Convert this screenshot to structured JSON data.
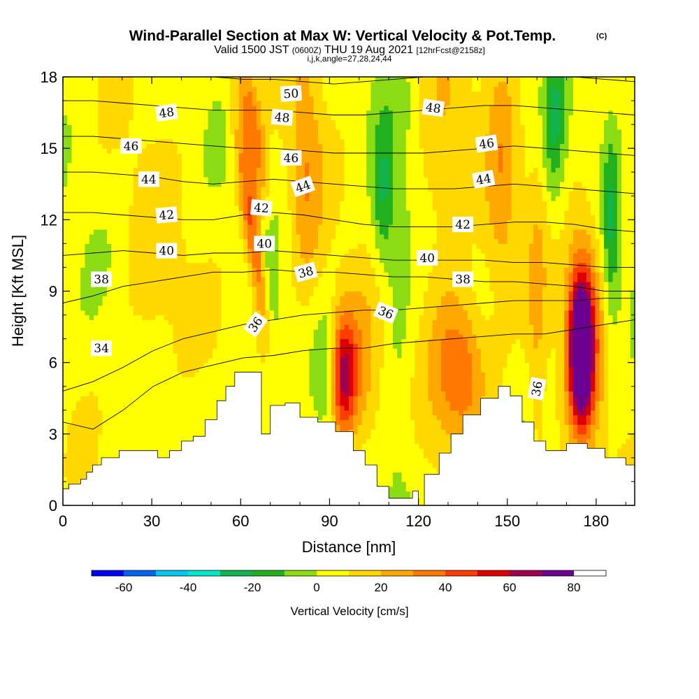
{
  "chart_data": {
    "type": "heatmap",
    "title": "Wind-Parallel Section at Max W: Vertical Velocity & Pot.Temp.",
    "copyright_mark": "(C)",
    "subtitle": {
      "valid": "Valid 1500 JST",
      "utc": "(0600Z)",
      "date": "THU 19 Aug 2021",
      "forecast": "[12hrFcst@2158z]"
    },
    "subtitle2": "i,j,k,angle=27,28,24,44",
    "xlabel": "Distance [nm]",
    "ylabel": "Height [Kft MSL]",
    "xlim": [
      0,
      193
    ],
    "ylim": [
      0,
      18
    ],
    "x_ticks": [
      0,
      30,
      60,
      90,
      120,
      150,
      180
    ],
    "y_ticks": [
      0,
      3,
      6,
      9,
      12,
      15,
      18
    ],
    "colorbar": {
      "label": "Vertical Velocity [cm/s]",
      "levels": [
        -70,
        -60,
        -50,
        -40,
        -30,
        -20,
        -10,
        0,
        10,
        20,
        30,
        40,
        50,
        60,
        70,
        80,
        90
      ],
      "colors": [
        "#0000f0",
        "#0064f0",
        "#00c8f0",
        "#00e8c8",
        "#10b450",
        "#20b020",
        "#8cdc14",
        "#ffff00",
        "#ffd800",
        "#ffa800",
        "#ff7800",
        "#ff3c00",
        "#dc0000",
        "#a00050",
        "#6c0090"
      ],
      "tick_values": [
        -60,
        -40,
        -20,
        0,
        20,
        40,
        60,
        80
      ],
      "tick_labels": [
        "-60",
        "-40",
        "-20",
        "0",
        "20",
        "40",
        "60",
        "80"
      ]
    },
    "terrain": [
      [
        0,
        0.7
      ],
      [
        2,
        0.9
      ],
      [
        6,
        1.1
      ],
      [
        8,
        1.4
      ],
      [
        10,
        1.7
      ],
      [
        13,
        2.0
      ],
      [
        19,
        2.3
      ],
      [
        32,
        2.0
      ],
      [
        36,
        2.3
      ],
      [
        40,
        2.7
      ],
      [
        44,
        2.9
      ],
      [
        48,
        3.6
      ],
      [
        52,
        4.4
      ],
      [
        55,
        5.0
      ],
      [
        58,
        5.6
      ],
      [
        64,
        5.6
      ],
      [
        67,
        3.0
      ],
      [
        70,
        4.2
      ],
      [
        75,
        4.3
      ],
      [
        80,
        3.7
      ],
      [
        86,
        3.5
      ],
      [
        92,
        3.1
      ],
      [
        98,
        2.3
      ],
      [
        102,
        1.7
      ],
      [
        106,
        0.8
      ],
      [
        110,
        0.3
      ],
      [
        114,
        0.3
      ],
      [
        118,
        0.6
      ],
      [
        120,
        0.0
      ],
      [
        122,
        1.3
      ],
      [
        127,
        2.2
      ],
      [
        131,
        3.0
      ],
      [
        135,
        3.8
      ],
      [
        141,
        4.5
      ],
      [
        147,
        5.0
      ],
      [
        151,
        4.6
      ],
      [
        155,
        3.5
      ],
      [
        159,
        2.7
      ],
      [
        163,
        2.3
      ],
      [
        170,
        2.6
      ],
      [
        177,
        2.4
      ],
      [
        183,
        2.0
      ],
      [
        190,
        1.7
      ],
      [
        193,
        1.7
      ]
    ],
    "w_features": [
      {
        "x": 64,
        "z": 11.5,
        "sx": 2.2,
        "sz": 3.5,
        "amp": 40,
        "tilt": -0.18
      },
      {
        "x": 64,
        "z": 16,
        "sx": 2.5,
        "sz": 2.5,
        "amp": 30,
        "tilt": -0.2
      },
      {
        "x": 94,
        "z": 5.5,
        "sx": 3.2,
        "sz": 1.8,
        "amp": 52
      },
      {
        "x": 98,
        "z": 5.2,
        "sx": 7,
        "sz": 2.6,
        "amp": 22
      },
      {
        "x": 135,
        "z": 5.6,
        "sx": 6,
        "sz": 2.0,
        "amp": 35
      },
      {
        "x": 175,
        "z": 6.6,
        "sx": 2.6,
        "sz": 2.0,
        "amp": 88
      },
      {
        "x": 176,
        "z": 7.5,
        "sx": 4.8,
        "sz": 3.8,
        "amp": 30
      },
      {
        "x": 160,
        "z": 7,
        "sx": 2.5,
        "sz": 6,
        "amp": 14
      },
      {
        "x": 82,
        "z": 14,
        "sx": 4,
        "sz": 4,
        "amp": 22
      },
      {
        "x": 128,
        "z": 13,
        "sx": 6,
        "sz": 6,
        "amp": 14
      },
      {
        "x": 148,
        "z": 14,
        "sx": 4,
        "sz": 5,
        "amp": 18
      },
      {
        "x": 30,
        "z": 9,
        "sx": 8,
        "sz": 4,
        "amp": 9
      },
      {
        "x": 90,
        "z": 5.5,
        "sx": 3,
        "sz": 1.8,
        "amp": -32
      },
      {
        "x": 108,
        "z": 13,
        "sx": 2.5,
        "sz": 2.2,
        "amp": -22
      },
      {
        "x": 166,
        "z": 16,
        "sx": 2.5,
        "sz": 2.5,
        "amp": -22
      },
      {
        "x": 185,
        "z": 11.5,
        "sx": 2,
        "sz": 3,
        "amp": -24
      },
      {
        "x": 113,
        "z": 7,
        "sx": 4,
        "sz": 8,
        "amp": -10
      },
      {
        "x": 70,
        "z": 8,
        "sx": 2,
        "sz": 3,
        "amp": -14
      }
    ],
    "theta_contours": [
      {
        "level": 34,
        "z": [
          3.5,
          3.2,
          4.0,
          5.0,
          5.6,
          5.9,
          6.2,
          6.3,
          6.5,
          6.6,
          6.6,
          6.8,
          6.9,
          7.0,
          7.1,
          7.2,
          7.2,
          7.4,
          7.6,
          7.8
        ]
      },
      {
        "level": 36,
        "z": [
          4.8,
          5.2,
          5.8,
          6.5,
          7.0,
          7.3,
          7.6,
          7.8,
          8.0,
          8.1,
          8.2,
          8.2,
          8.3,
          8.4,
          8.5,
          8.6,
          8.6,
          8.6,
          8.7,
          8.7
        ]
      },
      {
        "level": 38,
        "z": [
          8.5,
          8.8,
          9.2,
          9.4,
          9.6,
          9.8,
          9.8,
          9.9,
          9.8,
          9.8,
          9.7,
          9.6,
          9.6,
          9.5,
          9.4,
          9.4,
          9.3,
          9.2,
          9.0,
          9.0
        ]
      },
      {
        "level": 40,
        "z": [
          10.5,
          10.6,
          10.7,
          10.6,
          10.5,
          10.6,
          10.6,
          10.7,
          10.6,
          10.5,
          10.4,
          10.3,
          10.3,
          10.3,
          10.3,
          10.2,
          10.2,
          10.1,
          10.0,
          10.0
        ]
      },
      {
        "level": 42,
        "z": [
          12.3,
          12.3,
          12.2,
          12.1,
          12.0,
          12.0,
          12.2,
          12.3,
          12.2,
          12.0,
          11.8,
          11.7,
          11.7,
          11.7,
          11.8,
          11.9,
          11.9,
          11.8,
          11.6,
          11.5
        ]
      },
      {
        "level": 44,
        "z": [
          14.0,
          14.0,
          13.9,
          13.8,
          13.6,
          13.5,
          13.6,
          13.7,
          13.6,
          13.5,
          13.4,
          13.3,
          13.3,
          13.3,
          13.4,
          13.5,
          13.4,
          13.3,
          13.2,
          13.1
        ]
      },
      {
        "level": 46,
        "z": [
          15.5,
          15.5,
          15.4,
          15.3,
          15.2,
          15.1,
          15.0,
          15.0,
          14.9,
          14.8,
          14.8,
          14.8,
          14.8,
          14.9,
          15.0,
          15.1,
          15.0,
          14.9,
          14.8,
          14.7
        ]
      },
      {
        "level": 48,
        "z": [
          17.0,
          17.0,
          16.9,
          16.8,
          16.7,
          16.6,
          16.6,
          16.6,
          16.5,
          16.4,
          16.4,
          16.5,
          16.6,
          16.7,
          16.8,
          16.8,
          16.7,
          16.6,
          16.5,
          16.4
        ]
      },
      {
        "level": 50,
        "z": [
          18.5,
          18.4,
          18.3,
          18.2,
          18.1,
          18.0,
          17.9,
          17.9,
          17.8,
          17.7,
          17.8,
          17.9,
          18.0,
          18.1,
          18.2,
          18.2,
          18.1,
          18.0,
          17.9,
          17.8
        ]
      }
    ],
    "contour_labels": [
      {
        "text": "50",
        "x": 77,
        "z": 17.3,
        "angle": -3
      },
      {
        "text": "48",
        "x": 35,
        "z": 16.5,
        "angle": -8
      },
      {
        "text": "48",
        "x": 74,
        "z": 16.3,
        "angle": 5
      },
      {
        "text": "48",
        "x": 125,
        "z": 16.7,
        "angle": 8
      },
      {
        "text": "46",
        "x": 23,
        "z": 15.1,
        "angle": 0
      },
      {
        "text": "46",
        "x": 77,
        "z": 14.6,
        "angle": 0
      },
      {
        "text": "46",
        "x": 143,
        "z": 15.2,
        "angle": -8
      },
      {
        "text": "44",
        "x": 29,
        "z": 13.7,
        "angle": 0
      },
      {
        "text": "44",
        "x": 81,
        "z": 13.4,
        "angle": -20
      },
      {
        "text": "44",
        "x": 142,
        "z": 13.7,
        "angle": -10
      },
      {
        "text": "42",
        "x": 35,
        "z": 12.2,
        "angle": -5
      },
      {
        "text": "42",
        "x": 67,
        "z": 12.5,
        "angle": 5
      },
      {
        "text": "42",
        "x": 135,
        "z": 11.8,
        "angle": 0
      },
      {
        "text": "40",
        "x": 35,
        "z": 10.7,
        "angle": 0
      },
      {
        "text": "40",
        "x": 68,
        "z": 11.0,
        "angle": 0
      },
      {
        "text": "40",
        "x": 123,
        "z": 10.4,
        "angle": 0
      },
      {
        "text": "38",
        "x": 13,
        "z": 9.5,
        "angle": 0
      },
      {
        "text": "38",
        "x": 82,
        "z": 9.8,
        "angle": -15
      },
      {
        "text": "38",
        "x": 135,
        "z": 9.5,
        "angle": 0
      },
      {
        "text": "36",
        "x": 65,
        "z": 7.6,
        "angle": -55
      },
      {
        "text": "36",
        "x": 109,
        "z": 8.1,
        "angle": 22
      },
      {
        "text": "36",
        "x": 160,
        "z": 4.9,
        "angle": -80
      },
      {
        "text": "34",
        "x": 13,
        "z": 6.6,
        "angle": 0
      }
    ]
  }
}
